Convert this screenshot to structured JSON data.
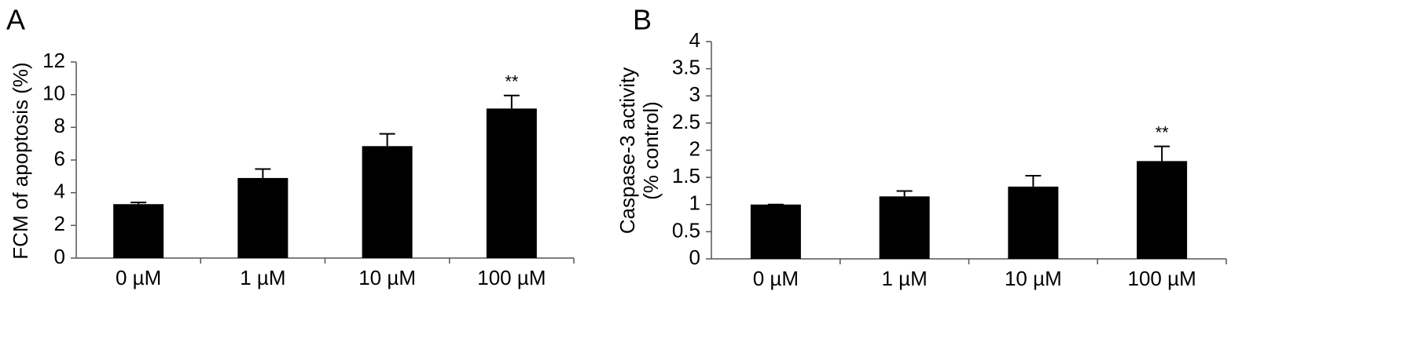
{
  "chart_data": [
    {
      "type": "bar",
      "panel": "A",
      "ylabel": [
        "FCM of apoptosis (%)"
      ],
      "categories": [
        "0 µM",
        "1 µM",
        "10 µM",
        "100 µM"
      ],
      "values": [
        3.3,
        4.9,
        6.85,
        9.15
      ],
      "errors": [
        0.1,
        0.55,
        0.75,
        0.8
      ],
      "significance": [
        null,
        null,
        null,
        "**"
      ],
      "color": "#000000",
      "ylim": [
        0,
        12
      ],
      "yticks": [
        0,
        2,
        4,
        6,
        8,
        10,
        12
      ]
    },
    {
      "type": "bar",
      "panel": "B",
      "ylabel": [
        "Caspase-3 activity",
        "(% control)"
      ],
      "categories": [
        "0 µM",
        "1 µM",
        "10 µM",
        "100 µM"
      ],
      "values": [
        1.0,
        1.15,
        1.33,
        1.8
      ],
      "errors": [
        0,
        0.1,
        0.2,
        0.27
      ],
      "significance": [
        null,
        null,
        null,
        "**"
      ],
      "color": "#000000",
      "ylim": [
        0,
        4
      ],
      "yticks": [
        0,
        0.5,
        1,
        1.5,
        2,
        2.5,
        3,
        3.5,
        4
      ]
    }
  ]
}
